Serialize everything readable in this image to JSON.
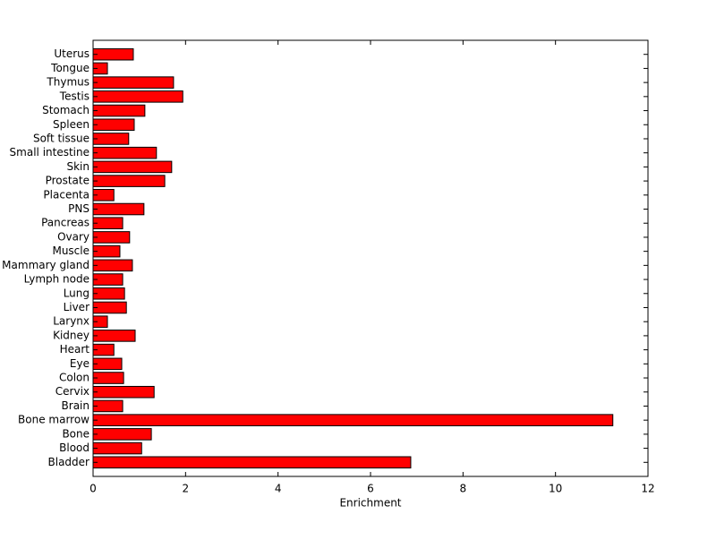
{
  "chart_data": {
    "type": "barh",
    "xlabel": "Enrichment",
    "categories": [
      "Bladder",
      "Blood",
      "Bone",
      "Bone marrow",
      "Brain",
      "Cervix",
      "Colon",
      "Eye",
      "Heart",
      "Kidney",
      "Larynx",
      "Liver",
      "Lung",
      "Lymph node",
      "Mammary gland",
      "Muscle",
      "Ovary",
      "Pancreas",
      "PNS",
      "Placenta",
      "Prostate",
      "Skin",
      "Small intestine",
      "Soft tissue",
      "Spleen",
      "Stomach",
      "Testis",
      "Thymus",
      "Tongue",
      "Uterus"
    ],
    "values": [
      6.87,
      1.05,
      1.26,
      11.24,
      0.64,
      1.32,
      0.66,
      0.62,
      0.45,
      0.91,
      0.31,
      0.72,
      0.68,
      0.64,
      0.85,
      0.58,
      0.79,
      0.64,
      1.1,
      0.45,
      1.55,
      1.7,
      1.37,
      0.77,
      0.89,
      1.12,
      1.94,
      1.74,
      0.31,
      0.87
    ],
    "color": "#ff0000",
    "xlim": [
      0,
      12
    ],
    "xticks": [
      0,
      2,
      4,
      6,
      8,
      10,
      12
    ]
  }
}
